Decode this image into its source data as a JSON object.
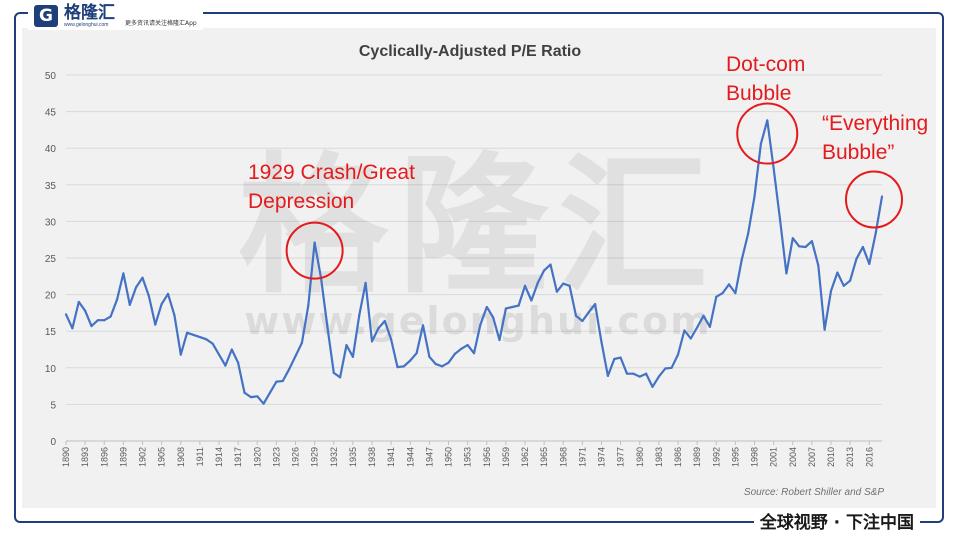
{
  "branding": {
    "logo_glyph": "G",
    "name": "格隆汇",
    "url": "www.gelonghui.com",
    "tagline": "更多资讯请关注格隆汇App",
    "watermark_name": "格隆汇",
    "watermark_url": "www.gelonghui.com",
    "bottom_slogan": "全球视野 · 下注中国"
  },
  "colors": {
    "frame": "#1f3f7a",
    "line": "#4472c4",
    "annotation": "#e41a1c",
    "plot_bg": "#f1f1f1"
  },
  "chart_data": {
    "type": "line",
    "title": "Cyclically-Adjusted P/E Ratio",
    "source": "Source: Robert Shiller and S&P",
    "xlabel": "",
    "ylabel": "",
    "ylim": [
      0,
      50
    ],
    "yticks": [
      0,
      5,
      10,
      15,
      20,
      25,
      30,
      35,
      40,
      45,
      50
    ],
    "xlim": [
      1890,
      2018
    ],
    "xticks": [
      1890,
      1893,
      1896,
      1899,
      1902,
      1905,
      1908,
      1911,
      1914,
      1917,
      1920,
      1923,
      1926,
      1929,
      1932,
      1935,
      1938,
      1941,
      1944,
      1947,
      1950,
      1953,
      1956,
      1959,
      1962,
      1965,
      1968,
      1971,
      1974,
      1977,
      1980,
      1983,
      1986,
      1989,
      1992,
      1995,
      1998,
      2001,
      2004,
      2007,
      2010,
      2013,
      2016
    ],
    "grid": true,
    "legend": "none",
    "series": [
      {
        "x": [
          1890,
          1891,
          1892,
          1893,
          1894,
          1895,
          1896,
          1897,
          1898,
          1899,
          1900,
          1901,
          1902,
          1903,
          1904,
          1905,
          1906,
          1907,
          1908,
          1909,
          1910,
          1911,
          1912,
          1913,
          1914,
          1915,
          1916,
          1917,
          1918,
          1919,
          1920,
          1921,
          1922,
          1923,
          1924,
          1925,
          1926,
          1927,
          1928,
          1929,
          1930,
          1931,
          1932,
          1933,
          1934,
          1935,
          1936,
          1937,
          1938,
          1939,
          1940,
          1941,
          1942,
          1943,
          1944,
          1945,
          1946,
          1947,
          1948,
          1949,
          1950,
          1951,
          1952,
          1953,
          1954,
          1955,
          1956,
          1957,
          1958,
          1959,
          1960,
          1961,
          1962,
          1963,
          1964,
          1965,
          1966,
          1967,
          1968,
          1969,
          1970,
          1971,
          1972,
          1973,
          1974,
          1975,
          1976,
          1977,
          1978,
          1979,
          1980,
          1981,
          1982,
          1983,
          1984,
          1985,
          1986,
          1987,
          1988,
          1989,
          1990,
          1991,
          1992,
          1993,
          1994,
          1995,
          1996,
          1997,
          1998,
          1999,
          2000,
          2001,
          2002,
          2003,
          2004,
          2005,
          2006,
          2007,
          2008,
          2009,
          2010,
          2011,
          2012,
          2013,
          2014,
          2015,
          2016,
          2017,
          2018
        ],
        "values": [
          17.3,
          15.4,
          19.0,
          17.8,
          15.7,
          16.5,
          16.5,
          17.0,
          19.3,
          22.9,
          18.6,
          21.0,
          22.3,
          19.8,
          15.9,
          18.7,
          20.1,
          17.2,
          11.8,
          14.8,
          14.5,
          14.2,
          13.9,
          13.3,
          11.8,
          10.3,
          12.5,
          10.7,
          6.6,
          6.0,
          6.1,
          5.1,
          6.6,
          8.1,
          8.2,
          9.8,
          11.6,
          13.4,
          18.5,
          27.1,
          22.3,
          15.6,
          9.3,
          8.7,
          13.1,
          11.5,
          17.2,
          21.6,
          13.6,
          15.4,
          16.4,
          13.9,
          10.1,
          10.2,
          11.0,
          12.0,
          15.8,
          11.5,
          10.5,
          10.2,
          10.7,
          11.9,
          12.6,
          13.1,
          12.0,
          15.9,
          18.3,
          16.9,
          13.8,
          18.1,
          18.3,
          18.5,
          21.2,
          19.2,
          21.6,
          23.3,
          24.1,
          20.4,
          21.5,
          21.2,
          17.1,
          16.4,
          17.6,
          18.7,
          13.5,
          8.9,
          11.2,
          11.4,
          9.2,
          9.2,
          8.8,
          9.2,
          7.4,
          8.8,
          9.9,
          10.0,
          11.8,
          15.1,
          14.0,
          15.5,
          17.1,
          15.6,
          19.7,
          20.2,
          21.4,
          20.2,
          24.8,
          28.3,
          33.4,
          40.6,
          43.8,
          37.3,
          30.3,
          22.9,
          27.7,
          26.6,
          26.5,
          27.3,
          24.0,
          15.2,
          20.5,
          23.0,
          21.2,
          21.9,
          24.9,
          26.5,
          24.2,
          28.3,
          33.4
        ]
      }
    ],
    "annotations": [
      {
        "text_lines": [
          "1929 Crash/Great",
          "Depression"
        ],
        "x": 1929,
        "y": 26
      },
      {
        "text_lines": [
          "Dot-com",
          "Bubble"
        ],
        "x": 2000,
        "y": 42
      },
      {
        "text_lines": [
          "“Everything",
          "Bubble”"
        ],
        "x": 2018,
        "y": 33
      }
    ]
  }
}
